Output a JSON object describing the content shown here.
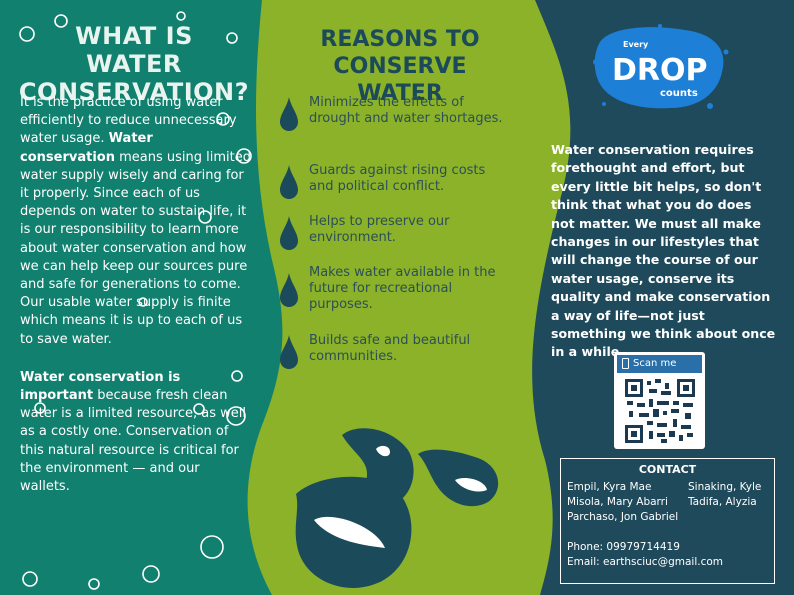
{
  "left": {
    "title_line1": "WHAT IS",
    "title_line2": "WATER CONSERVATION?",
    "p1_text1": "It is the practice of using water efficiently to reduce unnecessary water usage. ",
    "p1_bold": "Water conservation",
    "p1_text2": " means using limited water supply wisely and caring for it properly. Since each of us depends on water to sustain life, it is our responsibility to learn more about water conservation and how we can help keep our sources pure and safe for generations to come. Our usable water supply is finite which means it is up to each of us to save water.",
    "p2_bold": "Water conservation is important",
    "p2_text": " because fresh clean water is a limited resource, as well as a costly one. Conservation of this natural resource is critical for the environment — and our wallets."
  },
  "middle": {
    "title_line1": "REASONS TO",
    "title_line2": "CONSERVE WATER",
    "reasons": [
      "Minimizes the effects of drought and water shortages.",
      "Guards against rising costs and political conflict.",
      "Helps to preserve our environment.",
      "Makes water available in the future for recreational purposes.",
      "Builds safe and beautiful communities."
    ]
  },
  "logo": {
    "top": "Every",
    "main": "DROP",
    "bottom": "counts"
  },
  "right": {
    "paragraph": "Water conservation requires forethought and effort, but every little bit helps, so don't think that what you do does not matter. We must all make changes in our lifestyles that will change the course of our water usage, conserve its quality and make conservation a way of life—not just something we think about once in a while."
  },
  "scan": {
    "label": "Scan me"
  },
  "contact": {
    "title": "CONTACT",
    "names": [
      "Empil, Kyra Mae",
      "Sinaking, Kyle",
      "Misola, Mary Abarri",
      "Tadifa, Alyzia",
      "Parchaso, Jon Gabriel"
    ],
    "phone": "Phone: 09979714419",
    "email": "Email: earthsciuc@gmail.com"
  },
  "colors": {
    "teal": "#11806f",
    "lime": "#8cb229",
    "navy": "#1f4a5c",
    "text_dark": "#2b4f58",
    "logo_blue": "#1e7fd6"
  }
}
